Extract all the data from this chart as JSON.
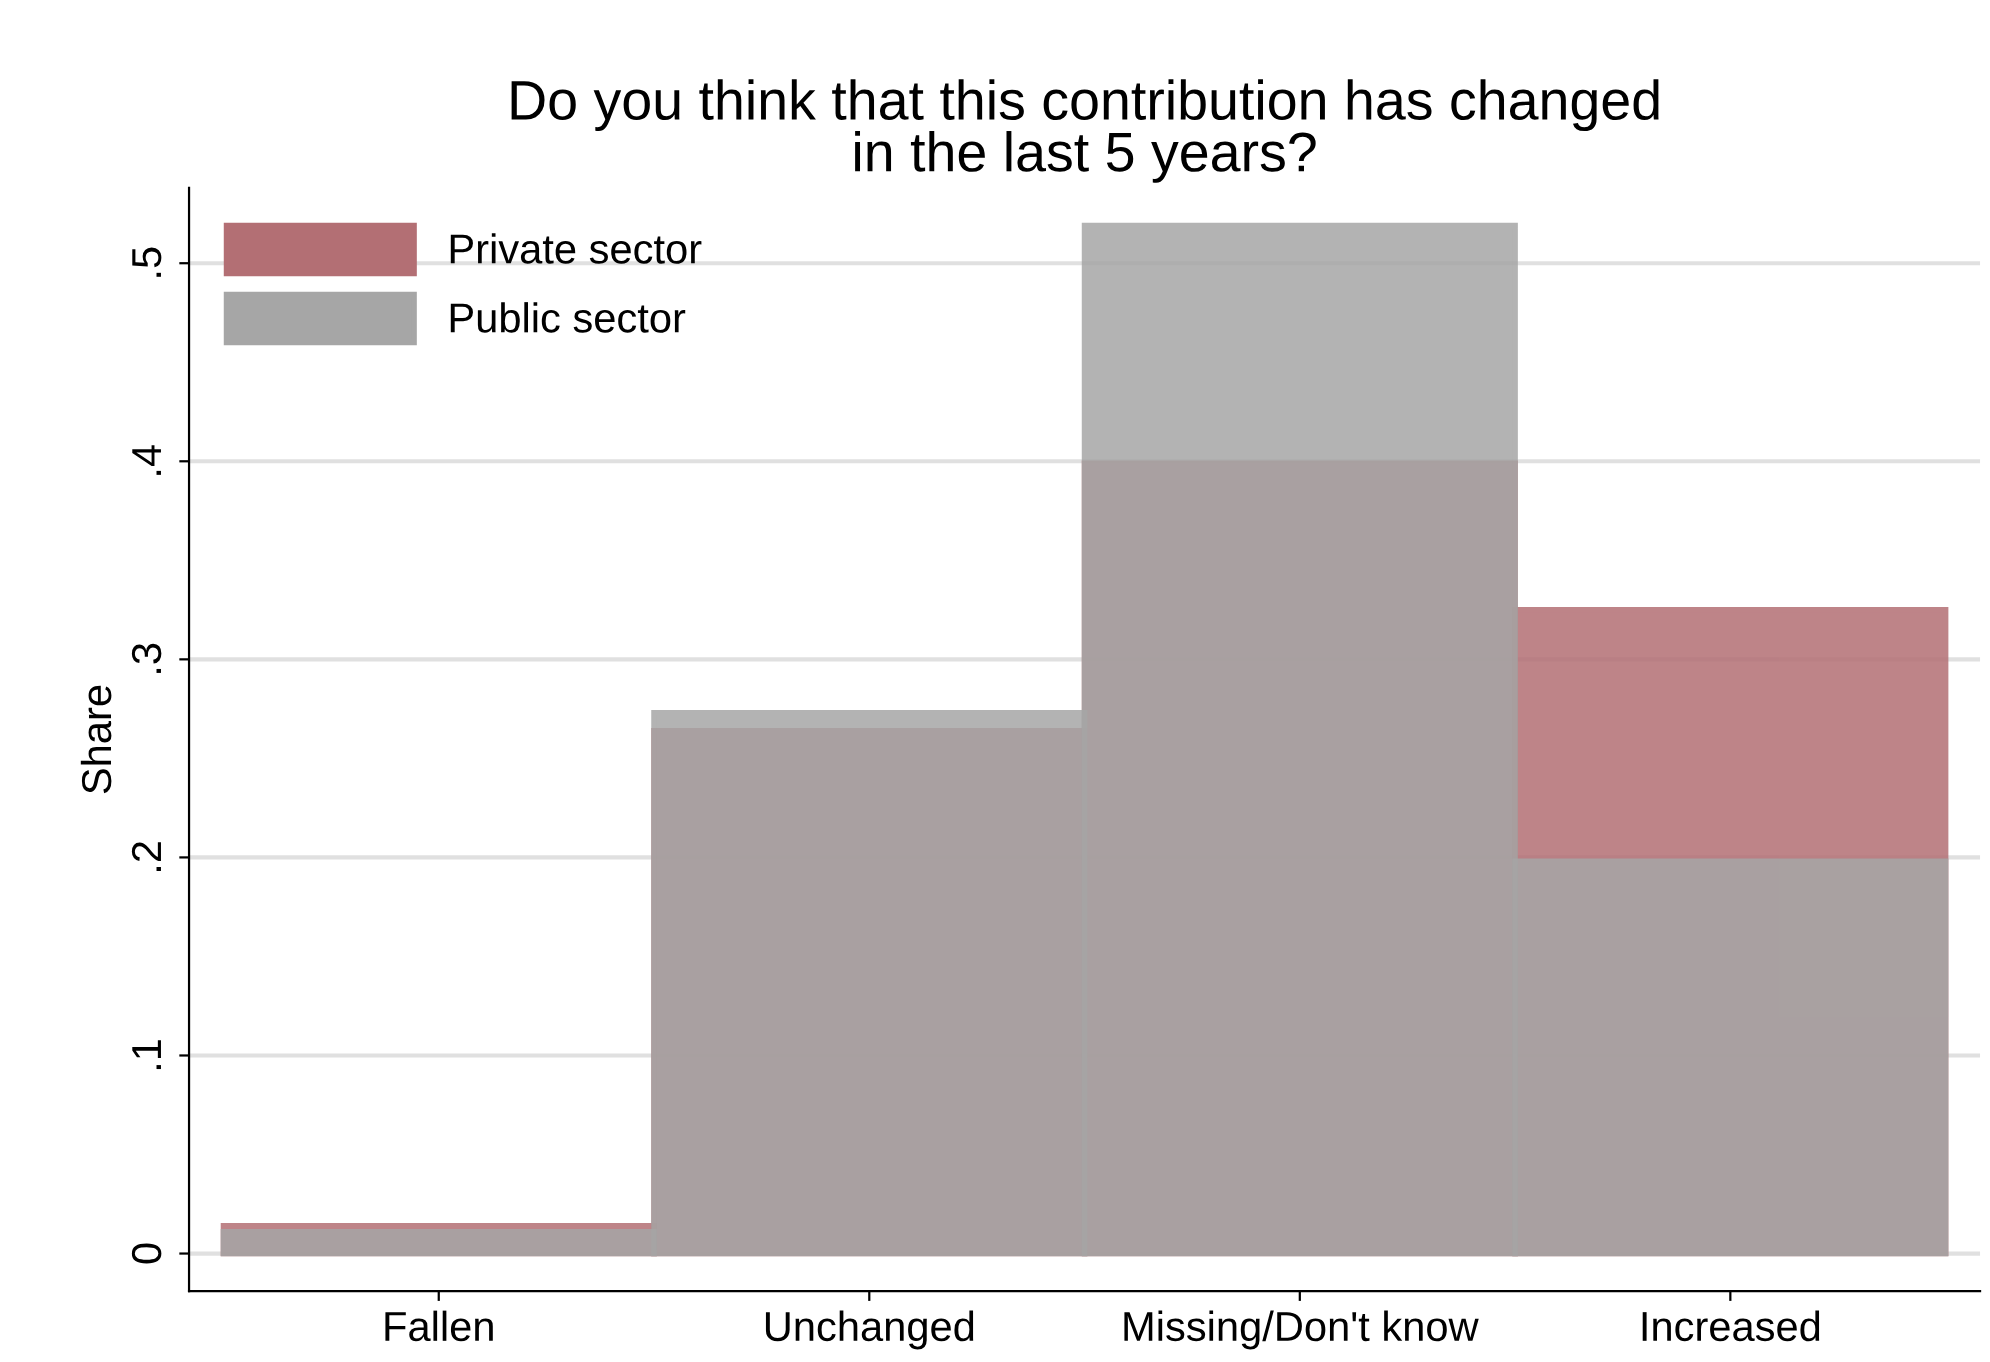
{
  "chart_data": {
    "type": "bar",
    "title": "Do you think that this contribution has changed\nin the last 5 years?",
    "ylabel": "Share",
    "categories": [
      "Fallen",
      "Unchanged",
      "Missing/Don't know",
      "Increased"
    ],
    "series": [
      {
        "name": "Private sector",
        "color": "#b36f74",
        "values": [
          0.014,
          0.264,
          0.399,
          0.325
        ]
      },
      {
        "name": "Public sector",
        "color": "#a6a6a6",
        "values": [
          0.011,
          0.273,
          0.519,
          0.198
        ]
      }
    ],
    "ylim": [
      -0.019,
      0.538
    ],
    "yticks": [
      0,
      {
        "value": 0.1,
        "label": ".1"
      },
      {
        "value": 0.2,
        "label": ".2"
      },
      {
        "value": 0.3,
        "label": ".3"
      },
      {
        "value": 0.4,
        "label": ".4"
      },
      {
        "value": 0.5,
        "label": ".5"
      }
    ],
    "grid": "y",
    "legend": "top left"
  }
}
